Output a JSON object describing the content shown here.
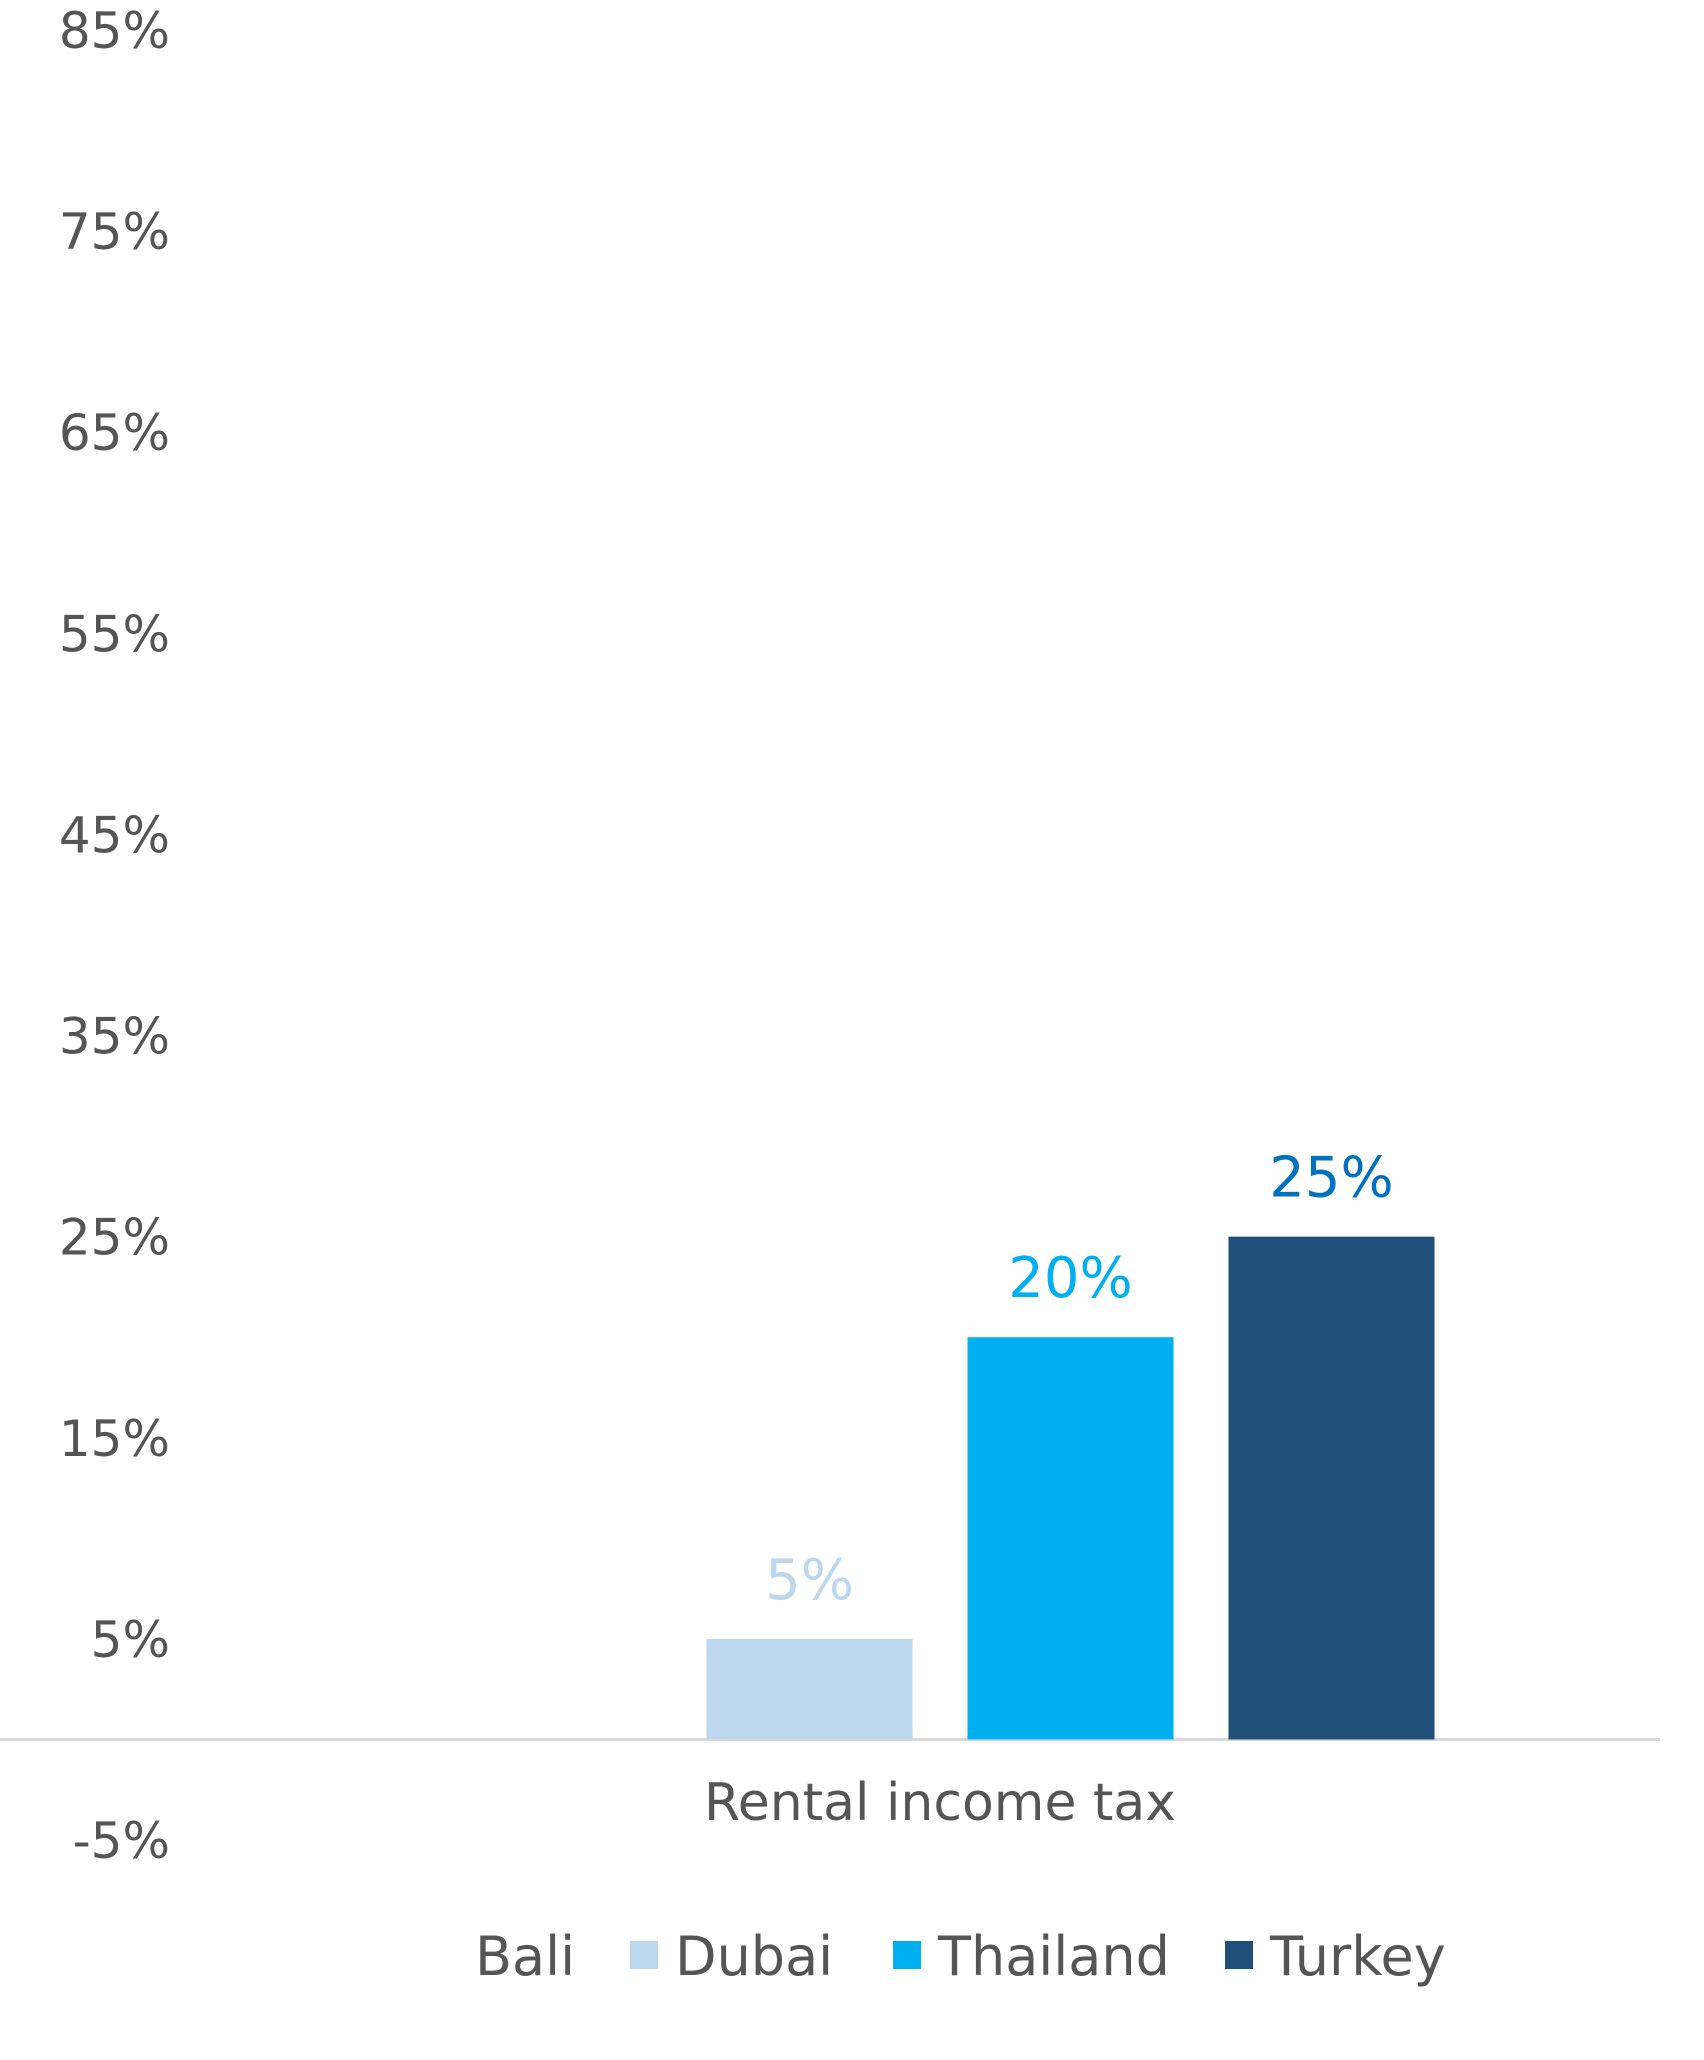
{
  "chart_data": {
    "type": "bar",
    "categories": [
      "Rental income tax"
    ],
    "series": [
      {
        "name": "Bali",
        "values": [
          0
        ],
        "color": "#e6e6e6",
        "label": ""
      },
      {
        "name": "Dubai",
        "values": [
          5
        ],
        "color": "#bdd7ee",
        "label": "5%"
      },
      {
        "name": "Thailand",
        "values": [
          20
        ],
        "color": "#00b0f0",
        "label": "20%"
      },
      {
        "name": "Turkey",
        "values": [
          25
        ],
        "color": "#1f4e79",
        "label": "25%"
      }
    ],
    "label_colors": {
      "Dubai": "#bdd7ee",
      "Thailand": "#00b0f0",
      "Turkey": "#0070c0"
    },
    "yticks": [
      "-5%",
      "5%",
      "15%",
      "25%",
      "35%",
      "45%",
      "55%",
      "65%",
      "75%",
      "85%"
    ],
    "ylim": [
      -5,
      85
    ],
    "title": "",
    "xlabel": "",
    "ylabel": "",
    "grid": false,
    "legend": "bottom"
  }
}
